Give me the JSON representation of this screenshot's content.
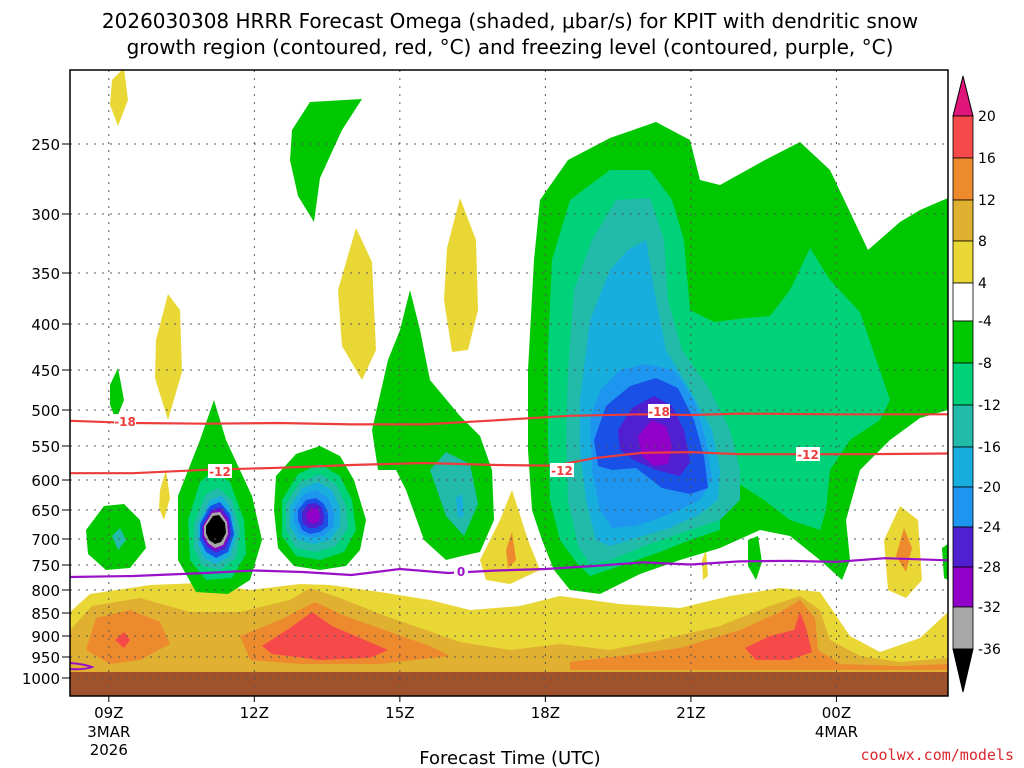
{
  "title_line1": "2026030308 HRRR Forecast Omega (shaded, μbar/s) for KPIT with dendritic snow",
  "title_line2": "growth region (contoured, red, °C) and freezing level (contoured, purple, °C)",
  "credit": "coolwx.com/models",
  "colors": {
    "yellow": "#e8d735",
    "gold": "#e0b030",
    "orange": "#ee8a2e",
    "red": "#f64a4a",
    "green": "#00c800",
    "ltgreen": "#00d27a",
    "teal": "#22bbaa",
    "cyan": "#17aede",
    "ltblue": "#1e96f0",
    "blue": "#1850e8",
    "indigo": "#5020d0",
    "purple": "#9000c8",
    "gray": "#a8a8a8",
    "black": "#000000",
    "ground": "#a0522d",
    "magenta": "#e0157a",
    "dgz": "#ec3c3c",
    "freezing": "#9a10c8"
  },
  "chart_data": {
    "type": "time-height contour",
    "title": "2026030308 HRRR Forecast Omega (shaded, μbar/s) for KPIT with dendritic snow growth region (contoured, red, °C) and freezing level (contoured, purple, °C)",
    "xlabel": "Forecast Time (UTC)",
    "ylabel": "",
    "xlim_hours": [
      8.2,
      26.3
    ],
    "ylim_hpa": [
      1010,
      205
    ],
    "x_ticks": [
      {
        "hour": 9,
        "label": "09Z",
        "date": "3MAR",
        "year": "2026"
      },
      {
        "hour": 12,
        "label": "12Z"
      },
      {
        "hour": 15,
        "label": "15Z"
      },
      {
        "hour": 18,
        "label": "18Z"
      },
      {
        "hour": 21,
        "label": "21Z"
      },
      {
        "hour": 24,
        "label": "00Z",
        "date": "4MAR"
      }
    ],
    "y_ticks": [
      250,
      300,
      350,
      400,
      450,
      500,
      550,
      600,
      650,
      700,
      750,
      800,
      850,
      900,
      950,
      1000
    ],
    "colorbar": {
      "units": "μbar/s",
      "labels": [
        "20",
        "16",
        "12",
        "8",
        "4",
        "-4",
        "-8",
        "-12",
        "-16",
        "-20",
        "-24",
        "-28",
        "-32",
        "-36"
      ]
    },
    "contours": [
      {
        "name": "dgz -18",
        "value": -18,
        "label": "-18",
        "points": [
          [
            8.2,
            515
          ],
          [
            9.5,
            518
          ],
          [
            11,
            519
          ],
          [
            12.5,
            518
          ],
          [
            14,
            520
          ],
          [
            15.5,
            520
          ],
          [
            16.8,
            515
          ],
          [
            18.5,
            508
          ],
          [
            20,
            506
          ],
          [
            21,
            507
          ],
          [
            22,
            505
          ],
          [
            24,
            506
          ],
          [
            26.3,
            506
          ]
        ]
      },
      {
        "name": "dgz -12",
        "value": -12,
        "label": "-12",
        "points": [
          [
            8.2,
            590
          ],
          [
            9.5,
            590
          ],
          [
            11,
            585
          ],
          [
            12.5,
            582
          ],
          [
            14,
            578
          ],
          [
            15.5,
            575
          ],
          [
            17,
            578
          ],
          [
            18.2,
            579
          ],
          [
            19,
            568
          ],
          [
            20,
            560
          ],
          [
            21,
            559
          ],
          [
            22,
            562
          ],
          [
            23,
            562
          ],
          [
            24.5,
            562
          ],
          [
            26.3,
            561
          ]
        ]
      },
      {
        "name": "freezing level 0",
        "value": 0,
        "label": "0",
        "points": [
          [
            8.2,
            774
          ],
          [
            9.5,
            772
          ],
          [
            11,
            766
          ],
          [
            12,
            761
          ],
          [
            13,
            764
          ],
          [
            14,
            770
          ],
          [
            15,
            758
          ],
          [
            16,
            766
          ],
          [
            17,
            761
          ],
          [
            18,
            758
          ],
          [
            19,
            752
          ],
          [
            20,
            745
          ],
          [
            21,
            749
          ],
          [
            22,
            743
          ],
          [
            23,
            742
          ],
          [
            24,
            744
          ],
          [
            25,
            737
          ],
          [
            26.3,
            741
          ]
        ]
      }
    ]
  },
  "labels": {
    "dgz18_a": "-18",
    "dgz18_b": "-18",
    "dgz12_a": "-12",
    "dgz12_b": "-12",
    "dgz12_c": "-12",
    "freezing": "0"
  }
}
